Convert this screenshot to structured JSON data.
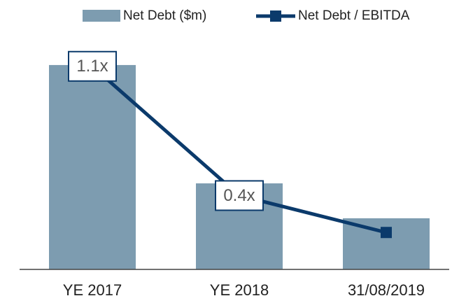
{
  "chart_data": {
    "type": "bar",
    "categories": [
      "YE 2017",
      "YE 2018",
      "31/08/2019"
    ],
    "ylim": [
      0,
      1300
    ],
    "y2lim": [
      0,
      1.3
    ],
    "legend": "top",
    "series": [
      {
        "name": "Net Debt ($m)",
        "type": "bar",
        "color": "#7d9cb0",
        "values": [
          1107,
          466,
          277
        ]
      },
      {
        "name": "Net Debt / EBITDA",
        "type": "line",
        "axis": "y2",
        "color": "#0b3a6b",
        "values": [
          1.1,
          0.4,
          0.2
        ],
        "value_labels": [
          "1.1x",
          "0.4x",
          null
        ]
      }
    ]
  }
}
